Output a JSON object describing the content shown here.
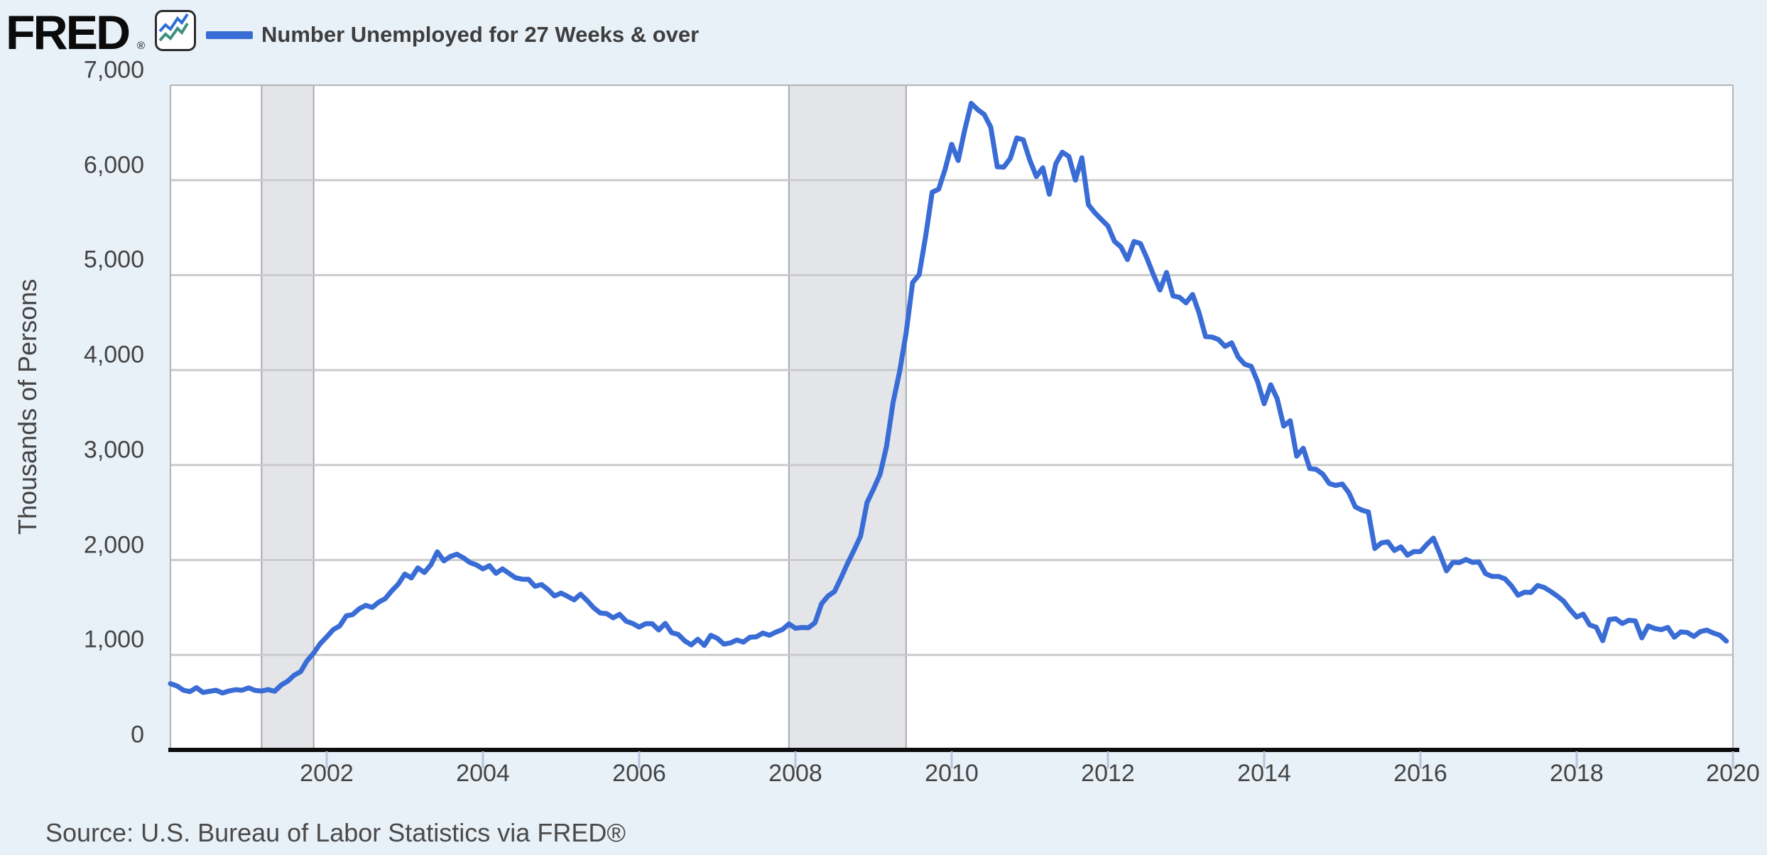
{
  "header": {
    "logo_text": "FRED",
    "logo_registered": "®",
    "logo_icon": "fred-line-chart-icon",
    "legend": {
      "series_label": "Number Unemployed for 27 Weeks & over",
      "swatch_color": "#3a6cd6"
    }
  },
  "footer": {
    "source_text": "Source: U.S. Bureau of Labor Statistics via FRED®"
  },
  "colors": {
    "page_background": "#e8f0f8",
    "plot_background": "#ffffff",
    "line": "#3a6cd6",
    "gridline": "#cbcbcb",
    "plot_border": "#b4b4b4",
    "recession_band": "#e3e5e9",
    "recession_band_edge": "#a6aab0",
    "axis_line": "#0d0d0d",
    "x_tick": "#b9c6da",
    "label_text": "#444444"
  },
  "chart_data": {
    "type": "line",
    "title": "Number Unemployed for 27 Weeks & over",
    "ylabel": "Thousands of Persons",
    "xlabel": "",
    "frequency": "monthly",
    "x_start": "2000-01",
    "x_end": "2019-12",
    "ylim": [
      0,
      7000
    ],
    "y_ticks": [
      0,
      1000,
      2000,
      3000,
      4000,
      5000,
      6000,
      7000
    ],
    "y_tick_labels": [
      "0",
      "1,000",
      "2,000",
      "3,000",
      "4,000",
      "5,000",
      "6,000",
      "7,000"
    ],
    "x_tick_years": [
      2002,
      2004,
      2006,
      2008,
      2010,
      2012,
      2014,
      2016,
      2018,
      2020
    ],
    "grid": "horizontal",
    "legend_position": "top-left",
    "recession_bands": [
      {
        "start": "2001-03",
        "end": "2001-11"
      },
      {
        "start": "2007-12",
        "end": "2009-06"
      }
    ],
    "series": [
      {
        "name": "Number Unemployed for 27 Weeks & over",
        "color": "#3a6cd6",
        "values": [
          698,
          674,
          628,
          614,
          655,
          605,
          617,
          628,
          599,
          621,
          634,
          628,
          654,
          627,
          620,
          635,
          618,
          682,
          723,
          787,
          824,
          940,
          1019,
          1119,
          1190,
          1266,
          1306,
          1411,
          1426,
          1487,
          1522,
          1501,
          1556,
          1594,
          1676,
          1746,
          1852,
          1811,
          1917,
          1868,
          1949,
          2086,
          1991,
          2037,
          2061,
          2023,
          1973,
          1948,
          1906,
          1940,
          1860,
          1906,
          1859,
          1813,
          1798,
          1796,
          1723,
          1741,
          1688,
          1621,
          1651,
          1617,
          1580,
          1640,
          1573,
          1498,
          1443,
          1435,
          1391,
          1428,
          1355,
          1331,
          1294,
          1329,
          1329,
          1263,
          1332,
          1234,
          1216,
          1148,
          1106,
          1166,
          1100,
          1207,
          1175,
          1114,
          1126,
          1158,
          1135,
          1186,
          1191,
          1231,
          1207,
          1241,
          1268,
          1327,
          1281,
          1289,
          1286,
          1339,
          1538,
          1620,
          1668,
          1811,
          1963,
          2103,
          2251,
          2605,
          2748,
          2903,
          3198,
          3659,
          3984,
          4388,
          4922,
          5004,
          5407,
          5872,
          5906,
          6116,
          6378,
          6207,
          6527,
          6809,
          6742,
          6692,
          6559,
          6141,
          6137,
          6230,
          6444,
          6425,
          6212,
          6038,
          6130,
          5852,
          6175,
          6295,
          6250,
          6001,
          6236,
          5741,
          5656,
          5586,
          5518,
          5356,
          5297,
          5164,
          5354,
          5332,
          5177,
          5002,
          4843,
          5028,
          4781,
          4766,
          4708,
          4796,
          4604,
          4353,
          4347,
          4321,
          4249,
          4287,
          4139,
          4062,
          4040,
          3878,
          3646,
          3845,
          3698,
          3410,
          3466,
          3093,
          3177,
          2963,
          2954,
          2905,
          2805,
          2785,
          2800,
          2709,
          2560,
          2525,
          2505,
          2121,
          2180,
          2191,
          2100,
          2139,
          2051,
          2089,
          2089,
          2165,
          2230,
          2063,
          1885,
          1975,
          1973,
          2006,
          1974,
          1979,
          1856,
          1828,
          1827,
          1801,
          1727,
          1629,
          1661,
          1659,
          1731,
          1711,
          1669,
          1621,
          1566,
          1476,
          1399,
          1430,
          1316,
          1292,
          1150,
          1373,
          1381,
          1331,
          1365,
          1359,
          1180,
          1306,
          1278,
          1266,
          1290,
          1187,
          1243,
          1236,
          1195,
          1246,
          1262,
          1231,
          1207,
          1146
        ]
      }
    ]
  }
}
